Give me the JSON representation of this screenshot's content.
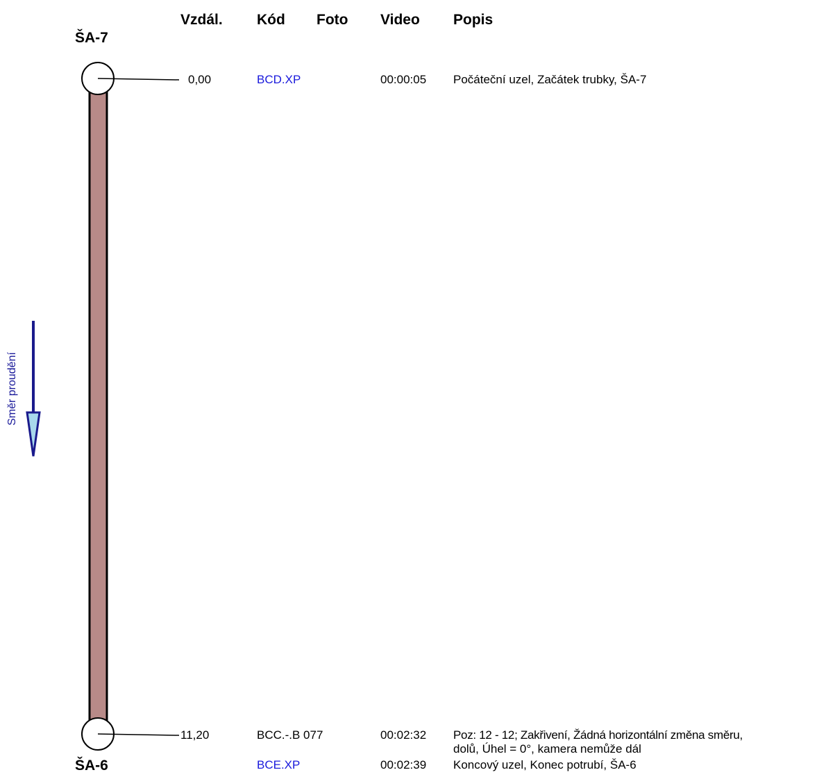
{
  "headers": {
    "distance": "Vzdál.",
    "code": "Kód",
    "photo": "Foto",
    "video": "Video",
    "description": "Popis"
  },
  "nodes": {
    "start": "ŠA-7",
    "end": "ŠA-6"
  },
  "flow_direction_label": "Směr proudění",
  "rows": [
    {
      "distance": "0,00",
      "code": "BCD.XP",
      "video": "00:00:05",
      "description": "Počáteční uzel, Začátek trubky, ŠA-7"
    },
    {
      "distance": "11,20",
      "code": "BCC.-.B 077",
      "video": "00:02:32",
      "description_line1": "Poz: 12 - 12; Zakřivení, Žádná horizontální změna směru,",
      "description_line2": "dolů, Úhel = 0°, kamera nemůže dál"
    },
    {
      "code": "BCE.XP",
      "video": "00:02:39",
      "description": "Koncový uzel, Konec potrubí, ŠA-6"
    }
  ],
  "colors": {
    "pipe_fill": "#b88a88",
    "link_text": "#1a1adc",
    "flow_arrow": "#1a1a8c",
    "flow_arrow_head": "#a8d8ec"
  }
}
